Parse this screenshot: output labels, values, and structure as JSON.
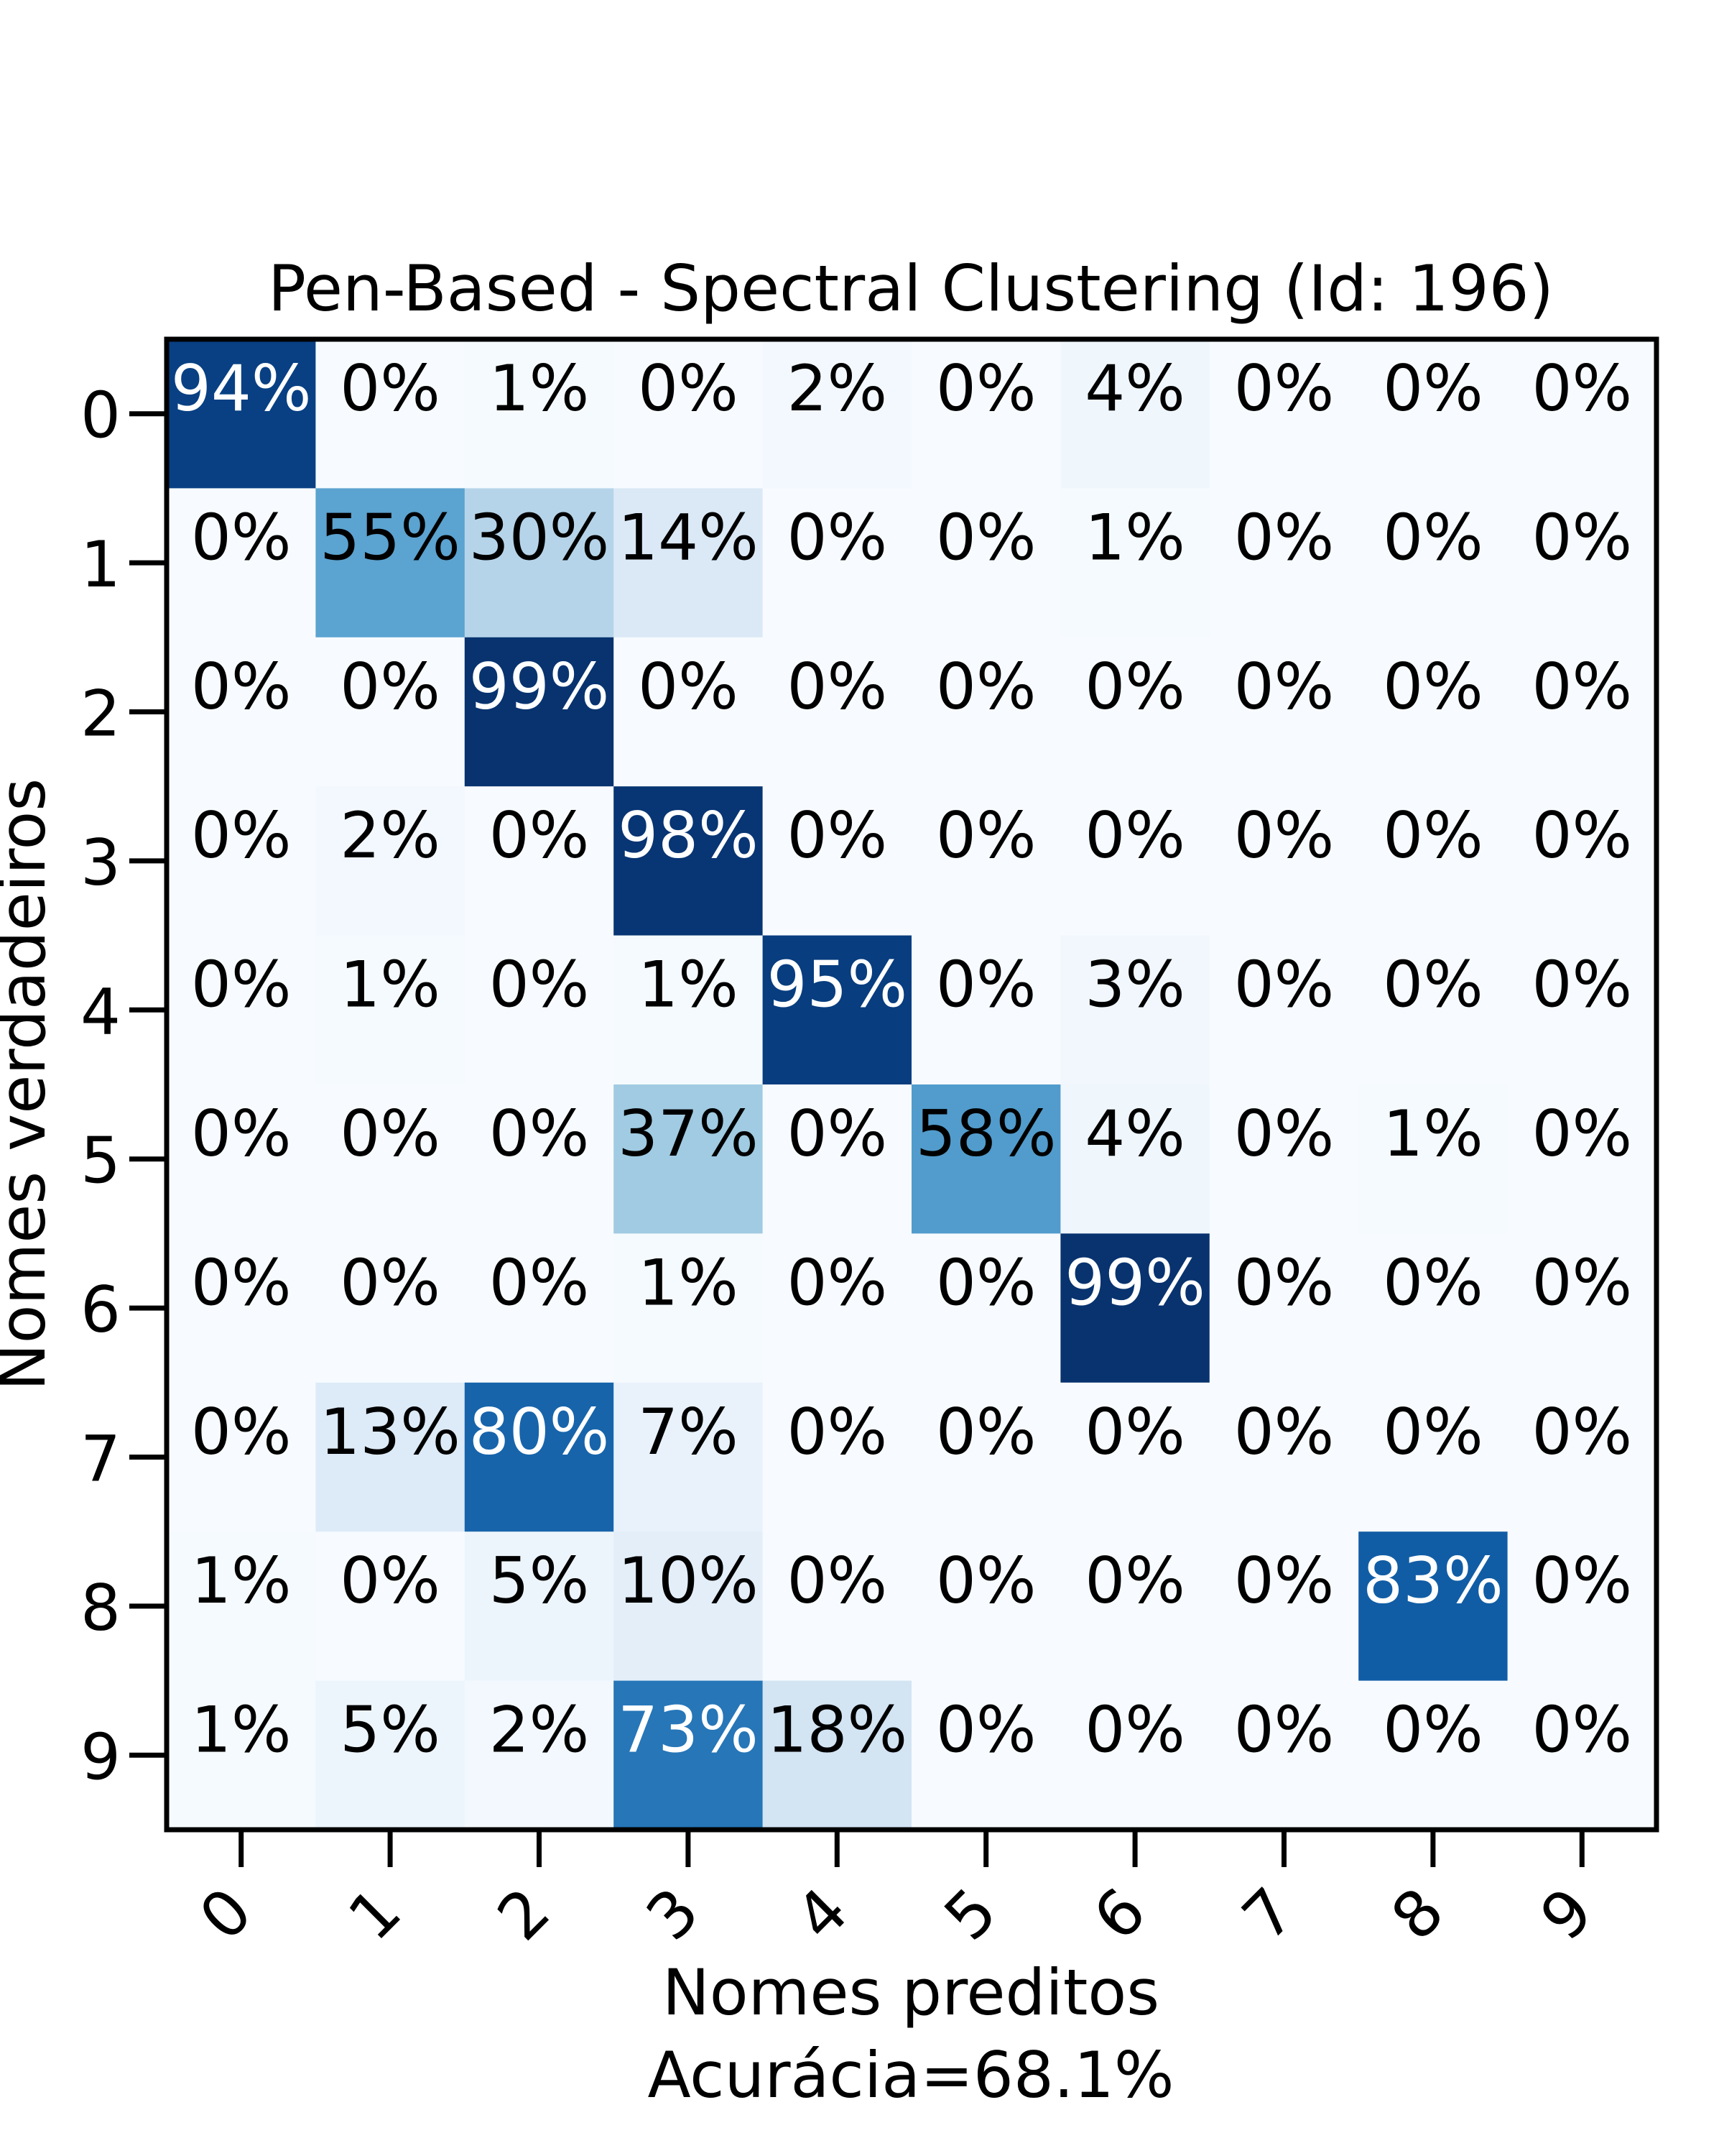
{
  "chart_data": {
    "type": "heatmap",
    "title": "Pen-Based - Spectral Clustering (Id: 196)",
    "xlabel": "Nomes preditos",
    "xlabel_sub": "Acurácia=68.1%",
    "ylabel": "Nomes verdadeiros",
    "x_categories": [
      "0",
      "1",
      "2",
      "3",
      "4",
      "5",
      "6",
      "7",
      "8",
      "9"
    ],
    "y_categories": [
      "0",
      "1",
      "2",
      "3",
      "4",
      "5",
      "6",
      "7",
      "8",
      "9"
    ],
    "values": [
      [
        94,
        0,
        1,
        0,
        2,
        0,
        4,
        0,
        0,
        0
      ],
      [
        0,
        55,
        30,
        14,
        0,
        0,
        1,
        0,
        0,
        0
      ],
      [
        0,
        0,
        99,
        0,
        0,
        0,
        0,
        0,
        0,
        0
      ],
      [
        0,
        2,
        0,
        98,
        0,
        0,
        0,
        0,
        0,
        0
      ],
      [
        0,
        1,
        0,
        1,
        95,
        0,
        3,
        0,
        0,
        0
      ],
      [
        0,
        0,
        0,
        37,
        0,
        58,
        4,
        0,
        1,
        0
      ],
      [
        0,
        0,
        0,
        1,
        0,
        0,
        99,
        0,
        0,
        0
      ],
      [
        0,
        13,
        80,
        7,
        0,
        0,
        0,
        0,
        0,
        0
      ],
      [
        1,
        0,
        5,
        10,
        0,
        0,
        0,
        0,
        83,
        0
      ],
      [
        1,
        5,
        2,
        73,
        18,
        0,
        0,
        0,
        0,
        0
      ]
    ],
    "value_suffix": "%",
    "vmin": 0,
    "vmax": 100,
    "colormap": "Blues",
    "colormap_low": "#f7fbff",
    "colormap_high": "#08306b",
    "label_dark_color": "#000000",
    "label_light_color": "#ffffff",
    "grid": false
  }
}
